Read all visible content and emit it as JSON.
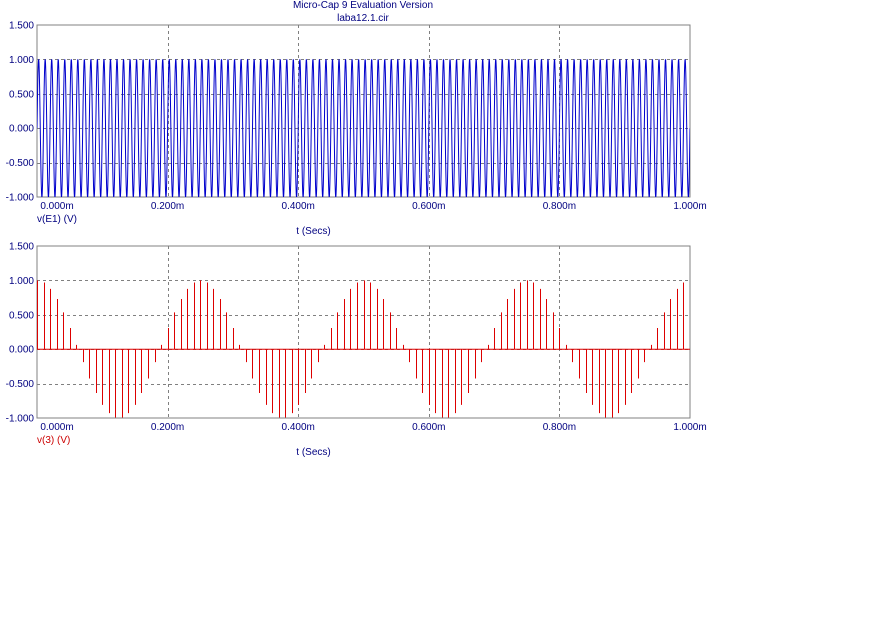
{
  "header": {
    "title": "Micro-Cap 9 Evaluation Version",
    "filename": "laba12.1.cir"
  },
  "colors": {
    "axis_text": "#000080",
    "trace_top": "#0000cc",
    "trace_bottom": "#dd0000",
    "grid": "#808080",
    "frame": "#808080"
  },
  "chart_data": [
    {
      "type": "line",
      "xlabel": "t (Secs)",
      "ylabel": "v(E1) (V)",
      "xlim": [
        0,
        0.001
      ],
      "ylim": [
        -1.0,
        1.5
      ],
      "x_ticks": [
        0,
        0.0002,
        0.0004,
        0.0006,
        0.0008,
        0.001
      ],
      "x_tick_labels": [
        "0.000m",
        "0.200m",
        "0.400m",
        "0.600m",
        "0.800m",
        "1.000m"
      ],
      "y_ticks": [
        -1.0,
        -0.5,
        0.0,
        0.5,
        1.0,
        1.5
      ],
      "y_tick_labels": [
        "-1.000",
        "-0.500",
        "0.000",
        "0.500",
        "1.000",
        "1.500"
      ],
      "grid": true,
      "series": [
        {
          "label": "v(E1) (V)",
          "waveform": "sine",
          "amplitude": 1.0,
          "frequency_hz": 100000,
          "color": "#0000cc"
        }
      ]
    },
    {
      "type": "line",
      "xlabel": "t (Secs)",
      "ylabel": "v(3) (V)",
      "xlim": [
        0,
        0.001
      ],
      "ylim": [
        -1.0,
        1.5
      ],
      "x_ticks": [
        0,
        0.0002,
        0.0004,
        0.0006,
        0.0008,
        0.001
      ],
      "x_tick_labels": [
        "0.000m",
        "0.200m",
        "0.400m",
        "0.600m",
        "0.800m",
        "1.000m"
      ],
      "y_ticks": [
        -1.0,
        -0.5,
        0.0,
        0.5,
        1.0,
        1.5
      ],
      "y_tick_labels": [
        "-1.000",
        "-0.500",
        "0.000",
        "0.500",
        "1.000",
        "1.500"
      ],
      "grid": true,
      "series": [
        {
          "label": "v(3) (V)",
          "waveform": "sampled-sine",
          "amplitude": 1.0,
          "frequency_hz": 4000,
          "sample_rate_hz": 100000,
          "color": "#dd0000"
        }
      ]
    }
  ]
}
